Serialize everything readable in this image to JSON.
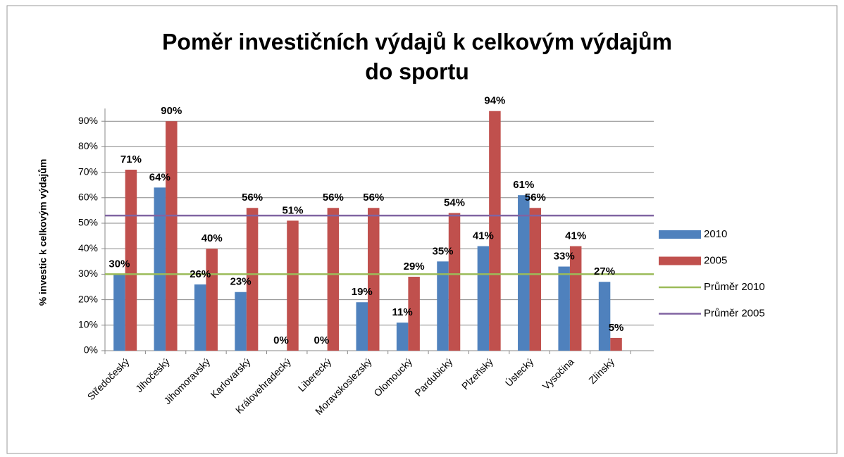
{
  "chart_data": {
    "type": "bar",
    "title": [
      "Poměr investičních výdajů k celkovým výdajům",
      "do sportu"
    ],
    "ylabel": "% investic k celkovým výdajům",
    "categories": [
      "Středočeský",
      "Jihočeský",
      "Jihomoravský",
      "Karlovarský",
      "Královehradecký",
      "Liberecký",
      "Moravskoslezský",
      "Olomoucký",
      "Pardubický",
      "Plzeňský",
      "Ústecký",
      "Vysočina",
      "Zlínský"
    ],
    "series": [
      {
        "name": "2010",
        "color": "#4f81bd",
        "values": [
          30,
          64,
          26,
          23,
          0,
          0,
          19,
          11,
          35,
          41,
          61,
          33,
          27
        ],
        "value_labels": [
          "30%",
          "64%",
          "26%",
          "23%",
          "0%",
          "0%",
          "19%",
          "11%",
          "35%",
          "41%",
          "61%",
          "33%",
          "27%"
        ]
      },
      {
        "name": "2005",
        "color": "#c0504d",
        "values": [
          71,
          90,
          40,
          56,
          51,
          56,
          56,
          29,
          54,
          94,
          56,
          41,
          5
        ],
        "value_labels": [
          "71%",
          "90%",
          "40%",
          "56%",
          "51%",
          "56%",
          "56%",
          "29%",
          "54%",
          "94%",
          "56%",
          "41%",
          "5%"
        ]
      }
    ],
    "average_lines": [
      {
        "name": "Průměr 2010",
        "color": "#9bbb59",
        "value": 30
      },
      {
        "name": "Průměr 2005",
        "color": "#8064a2",
        "value": 53
      }
    ],
    "ylim": [
      0,
      95
    ],
    "yticks": [
      {
        "value": 0,
        "label": "0%"
      },
      {
        "value": 10,
        "label": "10%"
      },
      {
        "value": 20,
        "label": "20%"
      },
      {
        "value": 30,
        "label": "30%"
      },
      {
        "value": 40,
        "label": "40%"
      },
      {
        "value": 50,
        "label": "50%"
      },
      {
        "value": 60,
        "label": "60%"
      },
      {
        "value": 70,
        "label": "70%"
      },
      {
        "value": 80,
        "label": "80%"
      },
      {
        "value": 90,
        "label": "90%"
      }
    ],
    "grid": true,
    "legend": "right"
  }
}
